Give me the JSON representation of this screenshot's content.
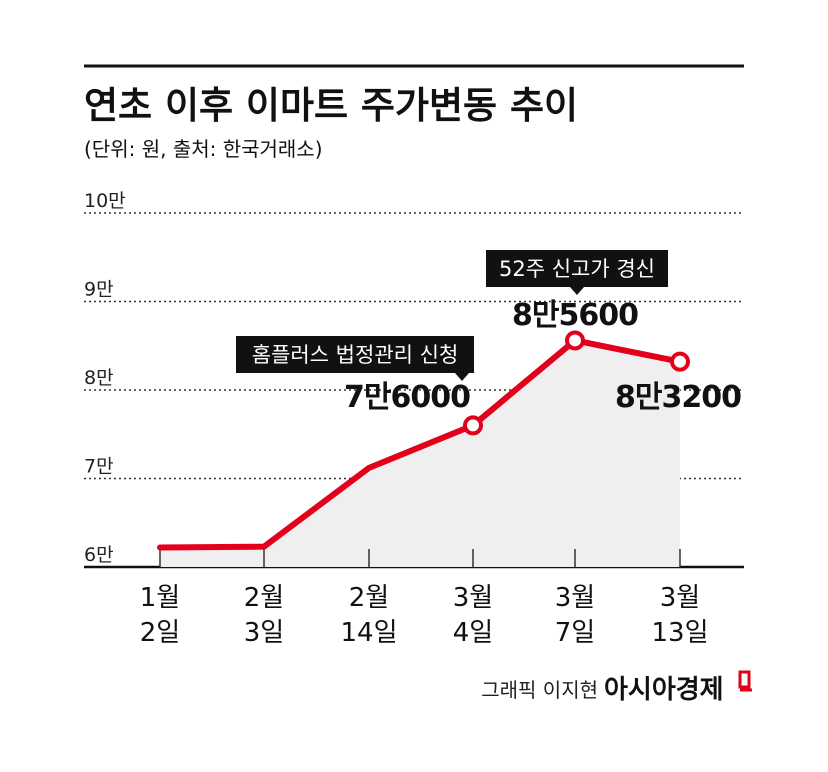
{
  "chart_data": {
    "type": "line",
    "title": "연초 이후 이마트 주가변동 추이",
    "subtitle": "(단위: 원, 출처: 한국거래소)",
    "y_tick_labels": [
      "10만",
      "9만",
      "8만",
      "7만",
      "6만"
    ],
    "y_ticks": [
      100000,
      90000,
      80000,
      70000,
      60000
    ],
    "ylim": [
      60000,
      100000
    ],
    "grid": true,
    "x_labels": [
      {
        "month": "1월",
        "day": "2일"
      },
      {
        "month": "2월",
        "day": "3일"
      },
      {
        "month": "2월",
        "day": "14일"
      },
      {
        "month": "3월",
        "day": "4일"
      },
      {
        "month": "3월",
        "day": "7일"
      },
      {
        "month": "3월",
        "day": "13일"
      }
    ],
    "values": [
      62200,
      62300,
      71200,
      76000,
      85600,
      83200
    ],
    "markers": [
      3,
      4,
      5
    ],
    "data_labels": [
      {
        "index": 3,
        "text": "7만6000"
      },
      {
        "index": 4,
        "text": "8만5600"
      },
      {
        "index": 5,
        "text": "8만3200"
      }
    ],
    "annotations": [
      {
        "index": 3,
        "text": "홈플러스 법정관리 신청"
      },
      {
        "index": 4,
        "text": "52주 신고가 경신"
      }
    ],
    "colors": {
      "line": "#e2001a",
      "area": "#efefef",
      "grid": "#333333",
      "callout_bg": "#111111"
    }
  },
  "footer": {
    "credit": "그래픽 이지현",
    "brand": "아시아경제"
  }
}
